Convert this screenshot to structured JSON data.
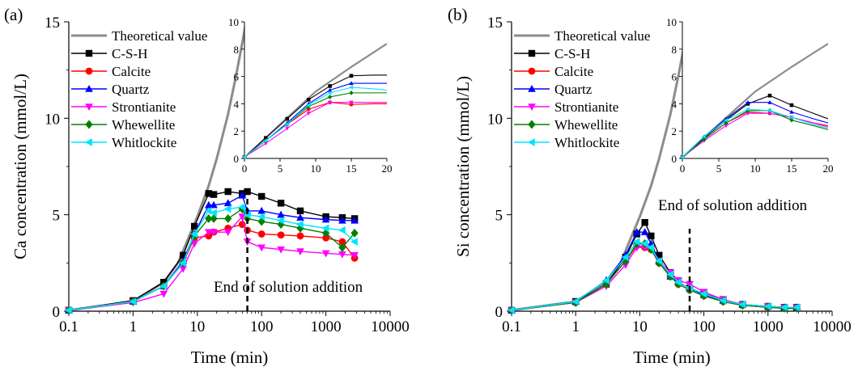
{
  "chart_data": [
    {
      "type": "line",
      "panel_label": "(a)",
      "xlabel": "Time (min)",
      "ylabel": "Ca concentration (mmol/L)",
      "xscale": "log",
      "xlim": [
        0.1,
        10000
      ],
      "ylim": [
        0,
        15
      ],
      "xticks": [
        "0.1",
        "1",
        "10",
        "100",
        "1000",
        "10000"
      ],
      "yticks": [
        "0",
        "5",
        "10",
        "15"
      ],
      "legend_placement": "top-left",
      "annotation": "End of solution addition",
      "end_of_addition_min": 60,
      "theoretical": {
        "name": "Theoretical value",
        "x": [
          0.1,
          1,
          3,
          5,
          10,
          15,
          20,
          30,
          40,
          50,
          60
        ],
        "y": [
          0.05,
          0.5,
          1.5,
          2.5,
          4.9,
          6.5,
          7.9,
          10.2,
          12.2,
          13.9,
          15.4
        ]
      },
      "series": [
        {
          "name": "C-S-H",
          "x": [
            0.1,
            1,
            3,
            6,
            9,
            15,
            18,
            30,
            50,
            60,
            100,
            200,
            400,
            1000,
            1800,
            2800
          ],
          "y": [
            0.05,
            0.55,
            1.5,
            2.9,
            4.4,
            6.1,
            6.05,
            6.2,
            6.1,
            6.2,
            5.95,
            5.6,
            5.2,
            4.9,
            4.85,
            4.8
          ]
        },
        {
          "name": "Calcite",
          "x": [
            0.1,
            1,
            3,
            6,
            9,
            15,
            18,
            30,
            50,
            60,
            100,
            200,
            400,
            1000,
            1800,
            2800
          ],
          "y": [
            0.05,
            0.5,
            1.3,
            2.5,
            3.8,
            3.9,
            4.1,
            4.3,
            4.5,
            4.2,
            4.0,
            3.95,
            3.9,
            3.8,
            3.6,
            2.75
          ]
        },
        {
          "name": "Quartz",
          "x": [
            0.1,
            1,
            3,
            6,
            9,
            15,
            18,
            30,
            50,
            60,
            100,
            200,
            400,
            1000,
            1800,
            2800
          ],
          "y": [
            0.05,
            0.5,
            1.3,
            2.6,
            4.0,
            5.5,
            5.5,
            5.6,
            6.0,
            5.2,
            5.2,
            5.0,
            4.85,
            4.75,
            4.7,
            4.7
          ]
        },
        {
          "name": "Strontianite",
          "x": [
            0.1,
            1,
            3,
            6,
            9,
            15,
            18,
            30,
            50,
            60,
            100,
            200,
            400,
            1000,
            1800,
            2800
          ],
          "y": [
            0.05,
            0.45,
            0.9,
            2.2,
            3.5,
            4.1,
            4.1,
            4.1,
            4.9,
            3.6,
            3.3,
            3.2,
            3.1,
            3.0,
            2.95,
            2.9
          ]
        },
        {
          "name": "Whewellite",
          "x": [
            0.1,
            1,
            3,
            6,
            9,
            15,
            18,
            30,
            50,
            60,
            100,
            200,
            400,
            1000,
            1800,
            2800
          ],
          "y": [
            0.05,
            0.5,
            1.3,
            2.5,
            3.9,
            4.8,
            4.8,
            4.8,
            5.3,
            4.8,
            4.65,
            4.5,
            4.3,
            4.05,
            3.3,
            4.05
          ]
        },
        {
          "name": "Whitlockite",
          "x": [
            0.1,
            1,
            3,
            6,
            9,
            15,
            18,
            30,
            50,
            60,
            100,
            200,
            400,
            1000,
            1800,
            2800
          ],
          "y": [
            0.05,
            0.5,
            1.3,
            2.5,
            4.0,
            5.2,
            5.1,
            5.3,
            5.4,
            5.0,
            4.9,
            4.7,
            4.5,
            4.3,
            4.2,
            3.6
          ]
        }
      ],
      "inset": {
        "xlim": [
          0,
          20
        ],
        "ylim": [
          0,
          10
        ],
        "xticks": [
          "0",
          "5",
          "10",
          "15",
          "20"
        ],
        "yticks": [
          "0",
          "2",
          "4",
          "6",
          "8",
          "10"
        ],
        "theoretical": {
          "x": [
            0,
            5,
            10,
            15,
            20
          ],
          "y": [
            0.05,
            2.5,
            4.9,
            6.7,
            8.4
          ]
        },
        "series": [
          {
            "name": "C-S-H",
            "x": [
              0,
              3,
              6,
              9,
              12,
              15,
              18,
              20
            ],
            "y": [
              0.1,
              1.5,
              2.9,
              4.3,
              5.3,
              6.05,
              6.1,
              6.1
            ]
          },
          {
            "name": "Calcite",
            "x": [
              0,
              3,
              6,
              9,
              12,
              15,
              18,
              20
            ],
            "y": [
              0.1,
              1.3,
              2.5,
              3.6,
              4.1,
              3.95,
              4.0,
              4.0
            ]
          },
          {
            "name": "Quartz",
            "x": [
              0,
              3,
              6,
              9,
              12,
              15,
              18,
              20
            ],
            "y": [
              0.1,
              1.3,
              2.6,
              4.0,
              5.0,
              5.5,
              5.5,
              5.5
            ]
          },
          {
            "name": "Strontianite",
            "x": [
              0,
              3,
              6,
              9,
              12,
              15,
              18,
              20
            ],
            "y": [
              0.1,
              1.1,
              2.2,
              3.3,
              4.1,
              4.1,
              4.1,
              4.1
            ]
          },
          {
            "name": "Whewellite",
            "x": [
              0,
              3,
              6,
              9,
              12,
              15,
              18,
              20
            ],
            "y": [
              0.1,
              1.3,
              2.5,
              3.8,
              4.5,
              4.8,
              4.8,
              4.8
            ]
          },
          {
            "name": "Whitlockite",
            "x": [
              0,
              3,
              6,
              9,
              12,
              15,
              18,
              20
            ],
            "y": [
              0.1,
              1.3,
              2.5,
              3.9,
              4.8,
              5.2,
              5.1,
              5.0
            ]
          }
        ]
      }
    },
    {
      "type": "line",
      "panel_label": "(b)",
      "xlabel": "Time (min)",
      "ylabel": "Si concentration (mmol/L)",
      "xscale": "log",
      "xlim": [
        0.1,
        10000
      ],
      "ylim": [
        0,
        15
      ],
      "xticks": [
        "0.1",
        "1",
        "10",
        "100",
        "1000",
        "10000"
      ],
      "yticks": [
        "0",
        "5",
        "10",
        "15"
      ],
      "legend_placement": "top-left",
      "annotation": "End of solution addition",
      "end_of_addition_min": 60,
      "theoretical": {
        "name": "Theoretical value",
        "x": [
          0.1,
          1,
          3,
          5,
          10,
          15,
          20,
          30,
          40,
          50,
          60
        ],
        "y": [
          0.05,
          0.5,
          1.5,
          2.5,
          4.9,
          6.5,
          7.9,
          10.2,
          12.2,
          13.9,
          15.4
        ]
      },
      "series": [
        {
          "name": "C-S-H",
          "x": [
            0.1,
            1,
            3,
            6,
            9,
            12,
            15,
            20,
            30,
            40,
            60,
            100,
            200,
            400,
            1000,
            1800,
            2800
          ],
          "y": [
            0.05,
            0.5,
            1.4,
            2.8,
            4.0,
            4.6,
            3.9,
            2.9,
            2.0,
            1.5,
            1.2,
            0.9,
            0.6,
            0.35,
            0.25,
            0.2,
            0.2
          ]
        },
        {
          "name": "Calcite",
          "x": [
            0.1,
            1,
            3,
            6,
            9,
            12,
            15,
            20,
            30,
            40,
            60,
            100,
            200,
            400,
            1000,
            1800,
            2800
          ],
          "y": [
            0.05,
            0.45,
            1.4,
            2.6,
            3.4,
            3.3,
            3.2,
            2.5,
            1.8,
            1.4,
            1.1,
            0.8,
            0.5,
            0.3,
            0.2,
            0.15,
            0.15
          ]
        },
        {
          "name": "Quartz",
          "x": [
            0.1,
            1,
            3,
            6,
            9,
            12,
            15,
            20,
            30,
            40,
            60,
            100,
            200,
            400,
            1000,
            1800,
            2800
          ],
          "y": [
            0.05,
            0.5,
            1.6,
            2.9,
            4.1,
            4.1,
            3.5,
            2.6,
            1.8,
            1.5,
            1.2,
            0.85,
            0.55,
            0.35,
            0.25,
            0.2,
            0.2
          ]
        },
        {
          "name": "Strontianite",
          "x": [
            0.1,
            1,
            3,
            6,
            9,
            12,
            15,
            20,
            30,
            40,
            60,
            100,
            200,
            400,
            1000,
            1800,
            2800
          ],
          "y": [
            0.05,
            0.45,
            1.3,
            2.4,
            3.3,
            3.3,
            3.2,
            2.6,
            2.0,
            1.6,
            1.4,
            1.0,
            0.6,
            0.35,
            0.25,
            0.2,
            0.2
          ]
        },
        {
          "name": "Whewellite",
          "x": [
            0.1,
            1,
            3,
            6,
            9,
            12,
            15,
            20,
            30,
            40,
            60,
            100,
            200,
            400,
            1000,
            1800,
            2800
          ],
          "y": [
            0.05,
            0.45,
            1.4,
            2.6,
            3.5,
            3.5,
            3.2,
            2.5,
            1.8,
            1.4,
            1.1,
            0.8,
            0.5,
            0.3,
            0.2,
            0.15,
            0.15
          ]
        },
        {
          "name": "Whitlockite",
          "x": [
            0.1,
            1,
            3,
            6,
            9,
            12,
            15,
            20,
            30,
            40,
            60,
            100,
            200,
            400,
            1000,
            1800,
            2800
          ],
          "y": [
            0.05,
            0.5,
            1.6,
            2.8,
            3.6,
            3.5,
            3.3,
            2.6,
            1.9,
            1.5,
            1.2,
            0.9,
            0.55,
            0.35,
            0.25,
            0.2,
            0.2
          ]
        }
      ],
      "inset": {
        "xlim": [
          0,
          20
        ],
        "ylim": [
          0,
          10
        ],
        "xticks": [
          "0",
          "5",
          "10",
          "15",
          "20"
        ],
        "yticks": [
          "0",
          "2",
          "4",
          "6",
          "8",
          "10"
        ],
        "theoretical": {
          "x": [
            0,
            5,
            10,
            15,
            20
          ],
          "y": [
            0.05,
            2.5,
            4.9,
            6.7,
            8.4
          ]
        },
        "series": [
          {
            "name": "C-S-H",
            "x": [
              0,
              3,
              6,
              9,
              12,
              15,
              18,
              20
            ],
            "y": [
              0.1,
              1.5,
              2.8,
              4.0,
              4.6,
              3.9,
              3.3,
              2.9
            ]
          },
          {
            "name": "Calcite",
            "x": [
              0,
              3,
              6,
              9,
              12,
              15,
              18,
              20
            ],
            "y": [
              0.1,
              1.4,
              2.6,
              3.4,
              3.3,
              3.0,
              2.6,
              2.4
            ]
          },
          {
            "name": "Quartz",
            "x": [
              0,
              3,
              6,
              9,
              12,
              15,
              18,
              20
            ],
            "y": [
              0.1,
              1.6,
              2.9,
              4.1,
              4.1,
              3.4,
              2.9,
              2.6
            ]
          },
          {
            "name": "Strontianite",
            "x": [
              0,
              3,
              6,
              9,
              12,
              15,
              18,
              20
            ],
            "y": [
              0.1,
              1.3,
              2.4,
              3.3,
              3.3,
              3.0,
              2.6,
              2.3
            ]
          },
          {
            "name": "Whewellite",
            "x": [
              0,
              3,
              6,
              9,
              12,
              15,
              18,
              20
            ],
            "y": [
              0.1,
              1.4,
              2.6,
              3.5,
              3.5,
              2.8,
              2.4,
              2.1
            ]
          },
          {
            "name": "Whitlockite",
            "x": [
              0,
              3,
              6,
              9,
              12,
              15,
              18,
              20
            ],
            "y": [
              0.1,
              1.6,
              2.8,
              3.6,
              3.5,
              3.0,
              2.5,
              2.2
            ]
          }
        ]
      }
    }
  ],
  "colors": {
    "theoretical": "#8c8c8c",
    "C-S-H": "#000000",
    "Calcite": "#ff0000",
    "Quartz": "#0000ff",
    "Strontianite": "#ff00ff",
    "Whewellite": "#008000",
    "Whitlockite": "#00e5ff"
  },
  "markers": {
    "C-S-H": "square",
    "Calcite": "circle",
    "Quartz": "triangle-up",
    "Strontianite": "triangle-down",
    "Whewellite": "diamond",
    "Whitlockite": "triangle-left"
  }
}
